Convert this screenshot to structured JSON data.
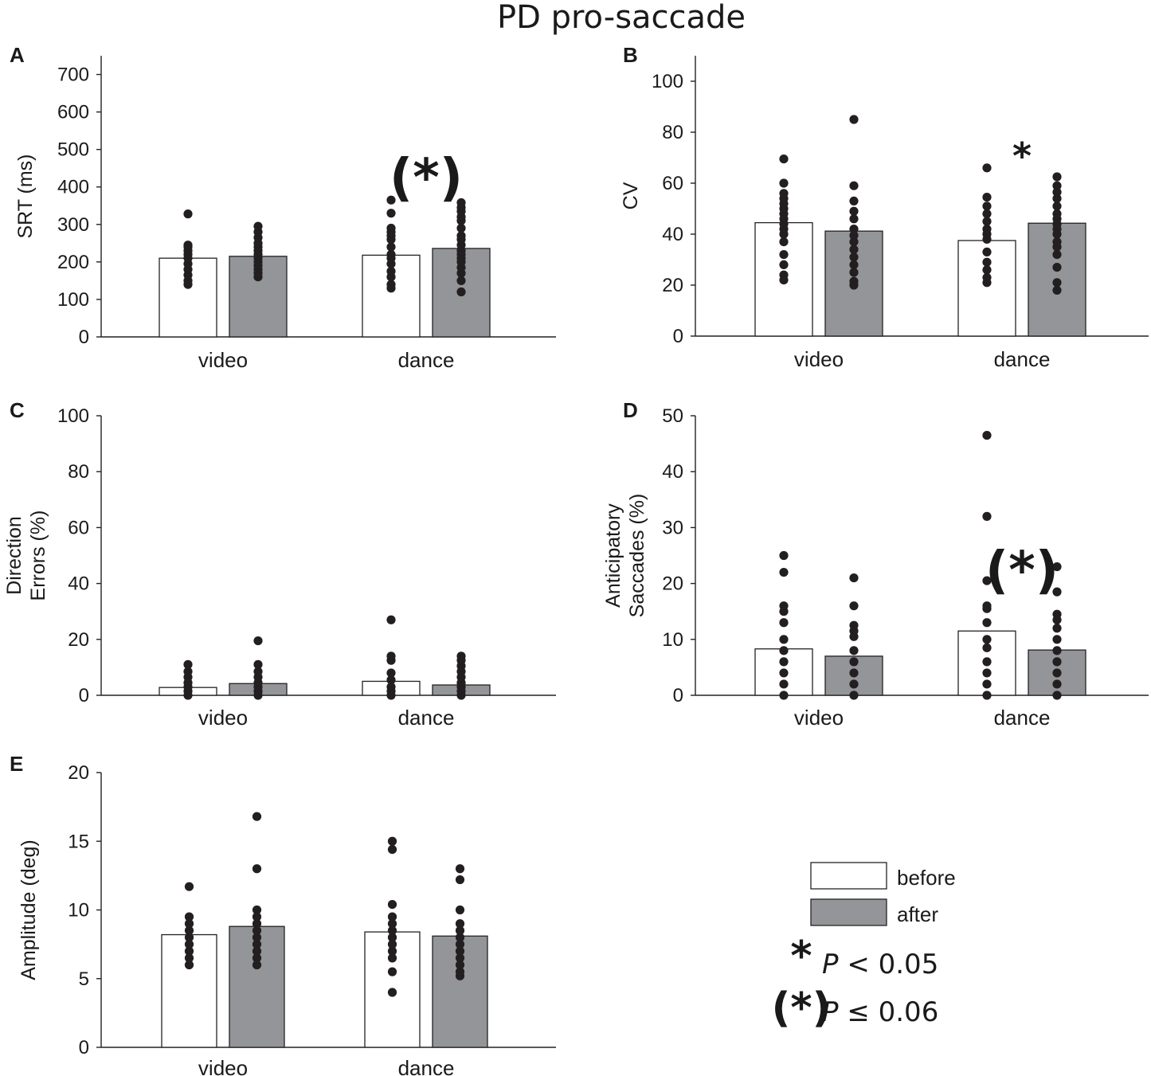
{
  "title": "PD pro-saccade",
  "colors": {
    "before": "#ffffff",
    "after": "#939598",
    "dot": "#231f20",
    "axis": "#222222"
  },
  "legend": {
    "before": "before",
    "after": "after"
  },
  "significance_key": {
    "star_symbol": "*",
    "star_text": "P < 0.05",
    "paren_symbol": "(*)",
    "paren_text": "P ≤ 0.06"
  },
  "chart_data": [
    {
      "panel": "A",
      "type": "bar",
      "categories": [
        "video",
        "dance"
      ],
      "ylabel": [
        "SRT (ms)"
      ],
      "ylim": [
        0,
        750
      ],
      "yticks": [
        0,
        100,
        200,
        300,
        400,
        500,
        600,
        700
      ],
      "series": [
        {
          "name": "before",
          "values": [
            210,
            218
          ]
        },
        {
          "name": "after",
          "values": [
            215,
            236
          ]
        }
      ],
      "points": {
        "before": [
          [
            140,
            150,
            165,
            180,
            195,
            210,
            220,
            230,
            240,
            245,
            328
          ],
          [
            130,
            140,
            160,
            175,
            195,
            210,
            220,
            240,
            260,
            270,
            280,
            290,
            330,
            365
          ]
        ],
        "after": [
          [
            160,
            170,
            180,
            190,
            200,
            210,
            220,
            230,
            240,
            250,
            265,
            280,
            295
          ],
          [
            120,
            150,
            170,
            185,
            200,
            210,
            220,
            230,
            245,
            260,
            270,
            290,
            310,
            320,
            335,
            345,
            358
          ]
        ]
      },
      "annotation": {
        "category": "dance",
        "text": "(*)"
      }
    },
    {
      "panel": "B",
      "type": "bar",
      "categories": [
        "video",
        "dance"
      ],
      "ylabel": [
        "CV"
      ],
      "ylim": [
        0,
        110
      ],
      "yticks": [
        0,
        20,
        40,
        60,
        80,
        100
      ],
      "series": [
        {
          "name": "before",
          "values": [
            44.5,
            37.5
          ]
        },
        {
          "name": "after",
          "values": [
            41.2,
            44.3
          ]
        }
      ],
      "points": {
        "before": [
          [
            22,
            24,
            28,
            32,
            37,
            40,
            42,
            44,
            46,
            48,
            50,
            52,
            54,
            56,
            60,
            69.5
          ],
          [
            21,
            23,
            26,
            29,
            33,
            38,
            40,
            42,
            45,
            48,
            51,
            54.5,
            66
          ]
        ],
        "after": [
          [
            20,
            21.5,
            25,
            28,
            31,
            34,
            37,
            39.5,
            42,
            46,
            49,
            53,
            59,
            85
          ],
          [
            18,
            21,
            27,
            32,
            35,
            37,
            40,
            42,
            44,
            46,
            48,
            51,
            54,
            56.5,
            59,
            62.5
          ]
        ]
      },
      "annotation": {
        "category": "dance",
        "text": "*"
      }
    },
    {
      "panel": "C",
      "type": "bar",
      "categories": [
        "video",
        "dance"
      ],
      "ylabel": [
        "Direction",
        "Errors (%)"
      ],
      "ylim": [
        0,
        100
      ],
      "yticks": [
        0,
        20,
        40,
        60,
        80,
        100
      ],
      "series": [
        {
          "name": "before",
          "values": [
            2.8,
            5
          ]
        },
        {
          "name": "after",
          "values": [
            4.2,
            3.7
          ]
        }
      ],
      "points": {
        "before": [
          [
            0,
            1.5,
            3,
            4.5,
            6.5,
            8.5,
            11
          ],
          [
            0,
            1.5,
            3,
            5.5,
            8,
            12.5,
            14,
            27
          ]
        ],
        "after": [
          [
            0,
            1.5,
            3,
            4.5,
            6.5,
            8.5,
            11,
            19.5
          ],
          [
            0,
            1.5,
            3,
            4.5,
            6.5,
            8.5,
            10.5,
            12.5,
            14
          ]
        ]
      },
      "annotation": null
    },
    {
      "panel": "D",
      "type": "bar",
      "categories": [
        "video",
        "dance"
      ],
      "ylabel": [
        "Anticipatory",
        "Saccades (%)"
      ],
      "ylim": [
        0,
        50
      ],
      "yticks": [
        0,
        10,
        20,
        30,
        40,
        50
      ],
      "series": [
        {
          "name": "before",
          "values": [
            8.3,
            11.5
          ]
        },
        {
          "name": "after",
          "values": [
            7,
            8.1
          ]
        }
      ],
      "points": {
        "before": [
          [
            0,
            2,
            4,
            6,
            8,
            10,
            13,
            15,
            16,
            22,
            25
          ],
          [
            0,
            2,
            4,
            6,
            8.5,
            10,
            13,
            15.5,
            16,
            20.5,
            32,
            46.5
          ]
        ],
        "after": [
          [
            0,
            2,
            4,
            6,
            8,
            10.5,
            11.5,
            12.5,
            16,
            21
          ],
          [
            0,
            2,
            4,
            6,
            8,
            10,
            12,
            13.5,
            14.5,
            18.5,
            23
          ]
        ]
      },
      "annotation": {
        "category": "dance",
        "text": "(*)"
      }
    },
    {
      "panel": "E",
      "type": "bar",
      "categories": [
        "video",
        "dance"
      ],
      "ylabel": [
        "Amplitude (deg)"
      ],
      "ylim": [
        0,
        20
      ],
      "yticks": [
        0,
        5,
        10,
        15,
        20
      ],
      "series": [
        {
          "name": "before",
          "values": [
            8.2,
            8.4
          ]
        },
        {
          "name": "after",
          "values": [
            8.8,
            8.1
          ]
        }
      ],
      "points": {
        "before": [
          [
            6,
            6.5,
            7,
            7.5,
            8,
            8.5,
            9,
            9.5,
            11.7
          ],
          [
            4,
            5.5,
            6.5,
            7,
            7.5,
            8,
            8.5,
            9,
            9.5,
            10.4,
            14.4,
            15
          ]
        ],
        "after": [
          [
            6,
            6.5,
            7,
            7.5,
            8,
            8.5,
            9,
            9.5,
            10,
            13,
            16.8
          ],
          [
            5.2,
            5.5,
            6,
            6.5,
            7,
            7.5,
            8,
            8.5,
            9,
            10,
            12.2,
            13
          ]
        ]
      },
      "annotation": null
    }
  ]
}
